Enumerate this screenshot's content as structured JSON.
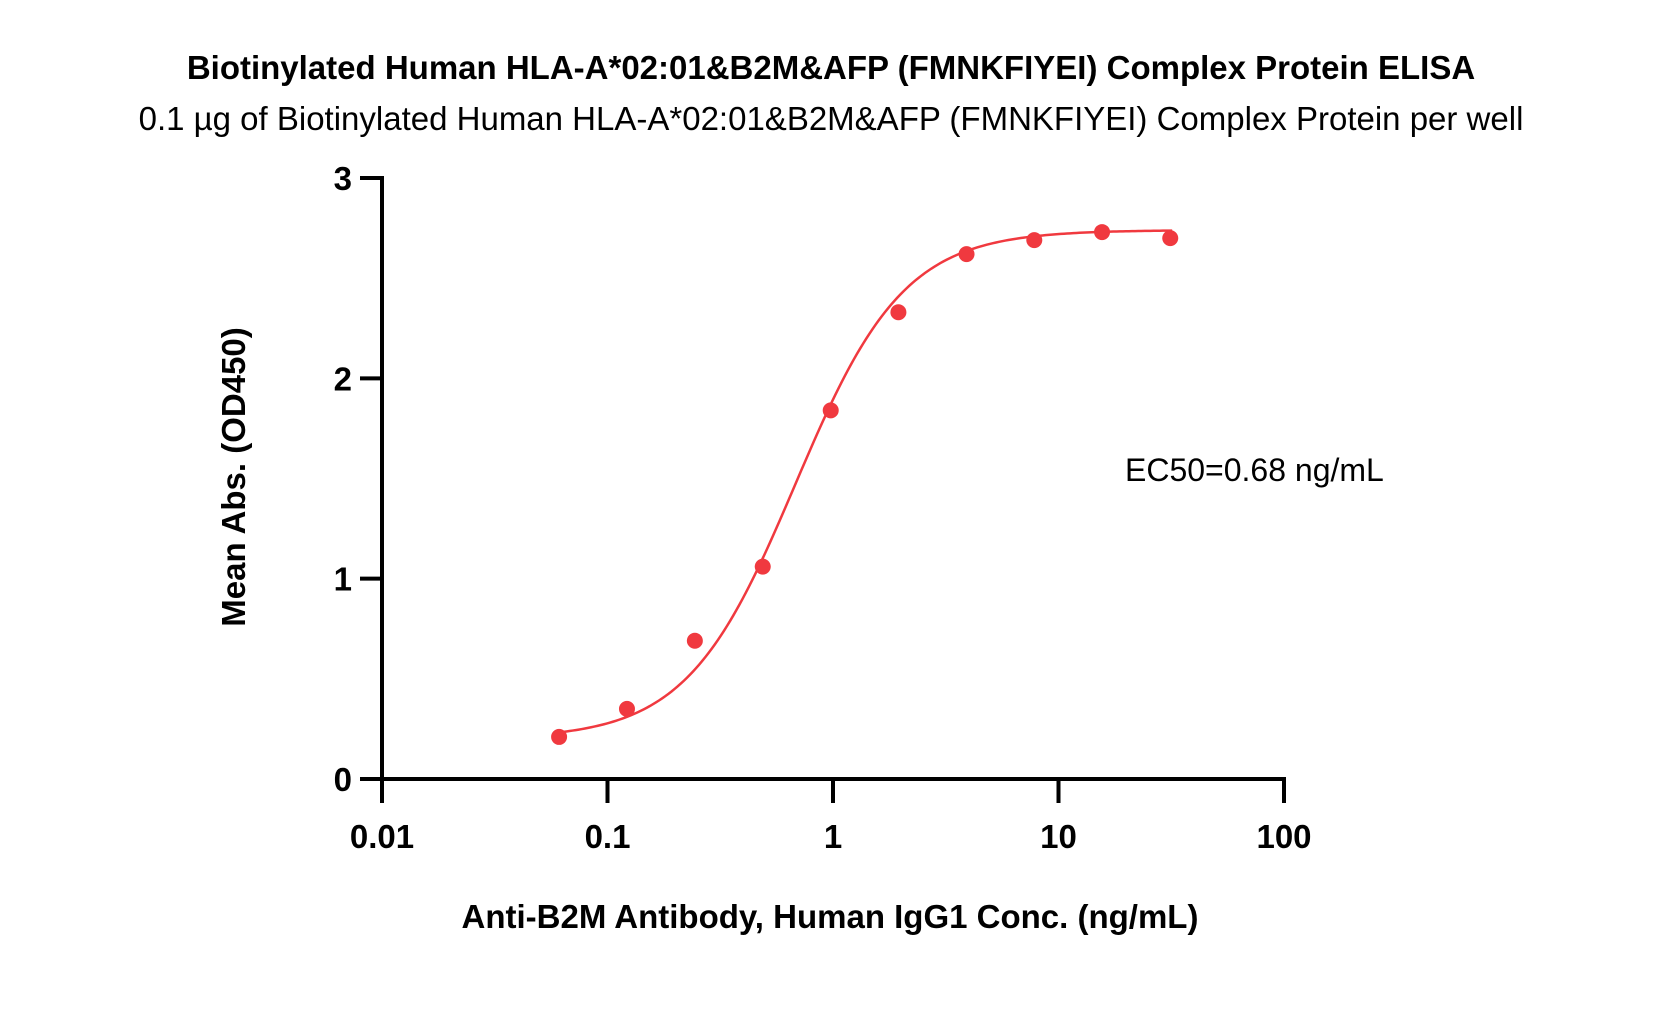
{
  "chart_data": {
    "type": "scatter",
    "title": "Biotinylated Human HLA-A*02:01&B2M&AFP (FMNKFIYEI) Complex Protein ELISA",
    "subtitle": "0.1 µg of Biotinylated Human HLA-A*02:01&B2M&AFP (FMNKFIYEI) Complex Protein per well",
    "xlabel": "Anti-B2M Antibody, Human IgG1 Conc. (ng/mL)",
    "ylabel": "Mean Abs. (OD450)",
    "xscale": "log",
    "xlim": [
      0.01,
      100
    ],
    "ylim": [
      0,
      3
    ],
    "xticks": [
      0.01,
      0.1,
      1,
      10,
      100
    ],
    "xtick_labels": [
      "0.01",
      "0.1",
      "1",
      "10",
      "100"
    ],
    "yticks": [
      0,
      1,
      2,
      3
    ],
    "ytick_labels": [
      "0",
      "1",
      "2",
      "3"
    ],
    "grid": false,
    "annotation": "EC50=0.68 ng/mL",
    "color": "#f0393f",
    "series": [
      {
        "x": [
          0.061,
          0.122,
          0.244,
          0.488,
          0.977,
          1.95,
          3.91,
          7.81,
          15.6,
          31.3
        ],
        "y": [
          0.21,
          0.35,
          0.69,
          1.06,
          1.84,
          2.33,
          2.62,
          2.69,
          2.73,
          2.7
        ]
      }
    ],
    "fit": {
      "model": "4PL",
      "bottom": 0.2,
      "top": 2.74,
      "ec50": 0.68,
      "hill": 1.8
    }
  }
}
